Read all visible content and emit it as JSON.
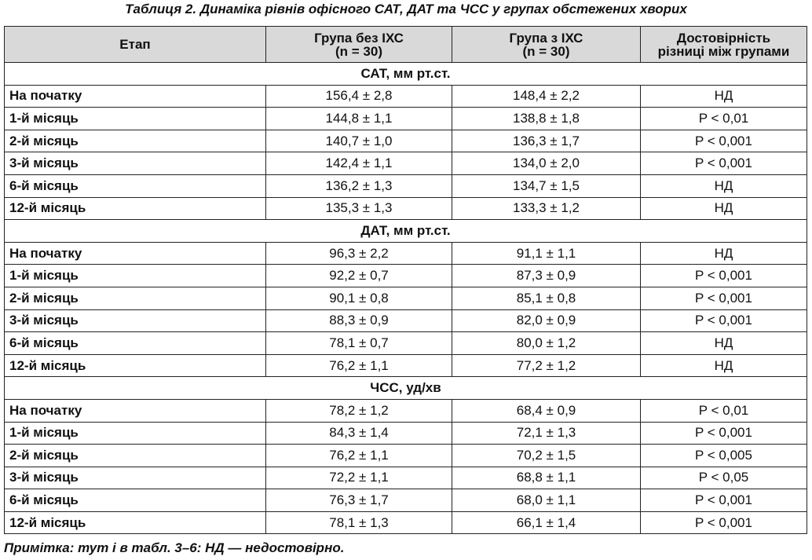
{
  "title": "Таблиця 2.  Динаміка рівнів офісного САТ, ДАТ та ЧСС у групах обстежених хворих",
  "table": {
    "columns": [
      "Етап",
      "Група без ІХС\n(n = 30)",
      "Група з ІХС\n(n = 30)",
      "Достовірність\nрізниці між групами"
    ],
    "sections": [
      {
        "title": "САТ, мм рт.ст.",
        "rows": [
          [
            "На початку",
            "156,4 ± 2,8",
            "148,4 ± 2,2",
            "НД"
          ],
          [
            "1-й місяць",
            "144,8 ± 1,1",
            "138,8 ± 1,8",
            "P < 0,01"
          ],
          [
            "2-й місяць",
            "140,7 ± 1,0",
            "136,3 ± 1,7",
            "P < 0,001"
          ],
          [
            "3-й місяць",
            "142,4 ± 1,1",
            "134,0 ± 2,0",
            "P < 0,001"
          ],
          [
            "6-й місяць",
            "136,2 ± 1,3",
            "134,7 ± 1,5",
            "НД"
          ],
          [
            "12-й місяць",
            "135,3 ± 1,3",
            "133,3 ± 1,2",
            "НД"
          ]
        ]
      },
      {
        "title": "ДАТ, мм рт.ст.",
        "rows": [
          [
            "На початку",
            "96,3 ± 2,2",
            "91,1 ± 1,1",
            "НД"
          ],
          [
            "1-й місяць",
            "92,2 ± 0,7",
            "87,3 ± 0,9",
            "P < 0,001"
          ],
          [
            "2-й місяць",
            "90,1 ± 0,8",
            "85,1 ± 0,8",
            "P < 0,001"
          ],
          [
            "3-й місяць",
            "88,3 ± 0,9",
            "82,0 ± 0,9",
            "P < 0,001"
          ],
          [
            "6-й місяць",
            "78,1 ± 0,7",
            "80,0 ± 1,2",
            "НД"
          ],
          [
            "12-й місяць",
            "76,2 ± 1,1",
            "77,2 ± 1,2",
            "НД"
          ]
        ]
      },
      {
        "title": "ЧСС, уд/хв",
        "rows": [
          [
            "На початку",
            "78,2 ± 1,2",
            "68,4 ± 0,9",
            "P < 0,01"
          ],
          [
            "1-й місяць",
            "84,3 ± 1,4",
            "72,1 ± 1,3",
            "P < 0,001"
          ],
          [
            "2-й місяць",
            "76,2 ± 1,1",
            "70,2 ± 1,5",
            "P < 0,005"
          ],
          [
            "3-й місяць",
            "72,2 ± 1,1",
            "68,8 ± 1,1",
            "P < 0,05"
          ],
          [
            "6-й місяць",
            "76,3 ± 1,7",
            "68,0 ± 1,1",
            "P < 0,001"
          ],
          [
            "12-й місяць",
            "78,1 ± 1,3",
            "66,1 ± 1,4",
            "P < 0,001"
          ]
        ]
      }
    ]
  },
  "note": "Примітка:  тут і в табл. 3–6: НД — недостовірно."
}
